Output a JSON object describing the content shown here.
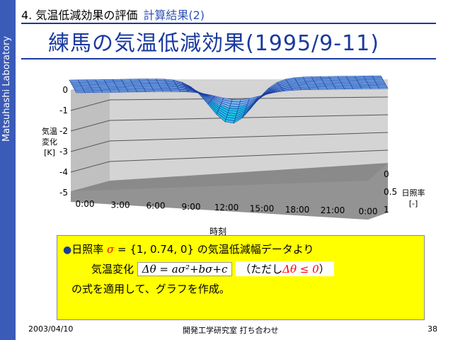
{
  "sidebar": {
    "text": "Matsuhashi Laboratory"
  },
  "header": {
    "section": "4. 気温低減効果の評価",
    "subsection": "計算結果(2)"
  },
  "title": "練馬の気温低減効果(1995/9-11)",
  "chart_data": {
    "type": "surface",
    "x_ticks": [
      "0:00",
      "3:00",
      "6:00",
      "9:00",
      "12:00",
      "15:00",
      "18:00",
      "21:00",
      "0:00"
    ],
    "y_ticks": [
      "0",
      "-1",
      "-2",
      "-3",
      "-4",
      "-5"
    ],
    "depth_ticks": [
      "0",
      "0.5",
      "1"
    ],
    "ylabel": [
      "気温",
      "変化",
      "[K]"
    ],
    "xlabel": "時刻",
    "depth_label": [
      "日照率",
      "[-]"
    ],
    "zlim": [
      -5,
      0
    ],
    "colors": {
      "surface": "#7fb6f0",
      "deep": "#20c8e8",
      "wall": "#c8c8c8",
      "floor": "#8a8a8a"
    }
  },
  "box": {
    "line1_a": "日照率",
    "sigma": "σ",
    "line1_b": " = {1, 0.74, 0} の気温低減幅データより",
    "line2_a": "気温変化",
    "formula": "Δθ = aσ²+bσ+c",
    "line2_b": "（ただし",
    "cond": "Δθ ≤ 0",
    "line2_c": "）",
    "line3": "の式を適用して、グラフを作成。"
  },
  "footer": {
    "date": "2003/04/10",
    "center": "開発工学研究室 打ち合わせ",
    "page": "38"
  }
}
